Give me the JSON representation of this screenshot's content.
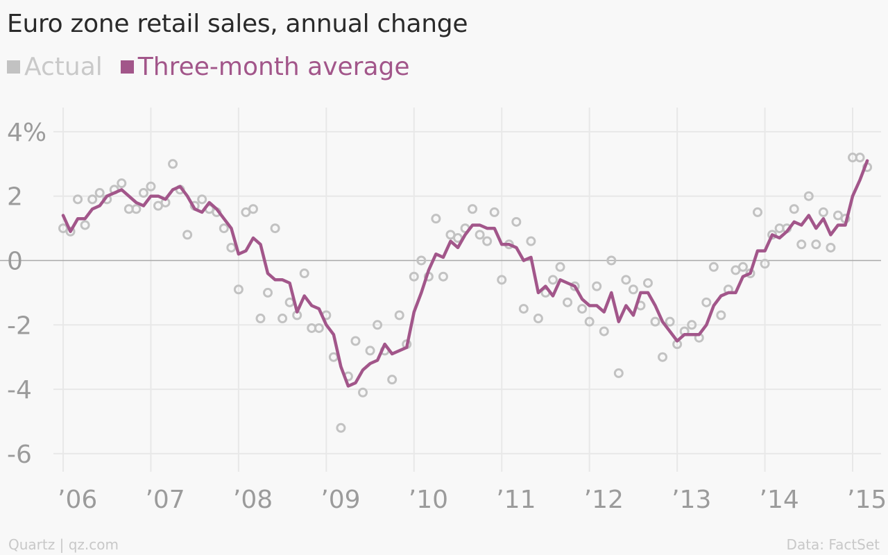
{
  "colors": {
    "actual": "#c2c2c2",
    "average": "#a2568a",
    "grid": "#e8e8e8",
    "zero_line": "#a9a9a9",
    "tick_text": "#9b9b9b",
    "legend_actual_text": "#c9c9c9",
    "legend_average_text": "#a2568a"
  },
  "chart_data": {
    "type": "line",
    "title": "Euro zone retail sales, annual change",
    "xlabel": "",
    "ylabel": "",
    "x_tick_labels": [
      "’06",
      "’07",
      "’08",
      "’09",
      "’10",
      "’11",
      "’12",
      "’13",
      "’14",
      "’15"
    ],
    "y_tick_labels": [
      "4%",
      "2",
      "0",
      "-2",
      "-4",
      "-6"
    ],
    "y_ticks": [
      4,
      2,
      0,
      -2,
      -4,
      -6
    ],
    "ylim": [
      -6.8,
      4.6
    ],
    "xlim": [
      2005.9,
      2015.18
    ],
    "grid": true,
    "legend_position": "top-left",
    "x_start": 2006.0,
    "x_step_months": 1,
    "series": [
      {
        "name": "Actual",
        "style": "hollow-circles",
        "values": [
          1.0,
          0.9,
          1.9,
          1.1,
          1.9,
          2.1,
          1.9,
          2.2,
          2.4,
          1.6,
          1.6,
          2.1,
          2.3,
          1.7,
          1.8,
          3.0,
          2.2,
          0.8,
          1.7,
          1.9,
          1.6,
          1.5,
          1.0,
          0.4,
          -0.9,
          1.5,
          1.6,
          -1.8,
          -1.0,
          1.0,
          -1.8,
          -1.3,
          -1.7,
          -0.4,
          -2.1,
          -2.1,
          -1.7,
          -3.0,
          -5.2,
          -3.6,
          -2.5,
          -4.1,
          -2.8,
          -2.0,
          -2.8,
          -3.7,
          -1.7,
          -2.6,
          -0.5,
          0.0,
          -0.5,
          1.3,
          -0.5,
          0.8,
          0.7,
          1.0,
          1.6,
          0.8,
          0.6,
          1.5,
          -0.6,
          0.5,
          1.2,
          -1.5,
          0.6,
          -1.8,
          -1.0,
          -0.6,
          -0.2,
          -1.3,
          -0.8,
          -1.5,
          -1.9,
          -0.8,
          -2.2,
          0.0,
          -3.5,
          -0.6,
          -0.9,
          -1.4,
          -0.7,
          -1.9,
          -3.0,
          -1.9,
          -2.6,
          -2.2,
          -2.0,
          -2.4,
          -1.3,
          -0.2,
          -1.7,
          -0.9,
          -0.3,
          -0.2,
          -0.4,
          1.5,
          -0.1,
          0.8,
          1.0,
          1.0,
          1.6,
          0.5,
          2.0,
          0.5,
          1.5,
          0.4,
          1.4,
          1.3,
          3.2,
          3.2,
          2.9
        ]
      },
      {
        "name": "Three-month average",
        "style": "line",
        "values": [
          1.4,
          0.9,
          1.3,
          1.3,
          1.6,
          1.7,
          2.0,
          2.1,
          2.2,
          2.0,
          1.8,
          1.7,
          2.0,
          2.0,
          1.9,
          2.2,
          2.3,
          2.0,
          1.6,
          1.5,
          1.8,
          1.6,
          1.3,
          1.0,
          0.2,
          0.3,
          0.7,
          0.5,
          -0.4,
          -0.6,
          -0.6,
          -0.7,
          -1.6,
          -1.1,
          -1.4,
          -1.5,
          -2.0,
          -2.3,
          -3.3,
          -3.9,
          -3.8,
          -3.4,
          -3.2,
          -3.1,
          -2.6,
          -2.9,
          -2.8,
          -2.7,
          -1.6,
          -1.0,
          -0.3,
          0.2,
          0.1,
          0.6,
          0.4,
          0.8,
          1.1,
          1.1,
          1.0,
          1.0,
          0.5,
          0.5,
          0.4,
          0.0,
          0.1,
          -1.0,
          -0.8,
          -1.1,
          -0.6,
          -0.7,
          -0.8,
          -1.2,
          -1.4,
          -1.4,
          -1.6,
          -1.0,
          -1.9,
          -1.4,
          -1.7,
          -1.0,
          -1.0,
          -1.4,
          -1.9,
          -2.2,
          -2.5,
          -2.3,
          -2.3,
          -2.3,
          -2.0,
          -1.4,
          -1.1,
          -1.0,
          -1.0,
          -0.5,
          -0.4,
          0.3,
          0.3,
          0.8,
          0.7,
          0.9,
          1.2,
          1.1,
          1.4,
          1.0,
          1.3,
          0.8,
          1.1,
          1.1,
          2.0,
          2.5,
          3.1
        ]
      }
    ]
  },
  "footer": {
    "source_left": "Quartz | qz.com",
    "source_right": "Data: FactSet"
  }
}
